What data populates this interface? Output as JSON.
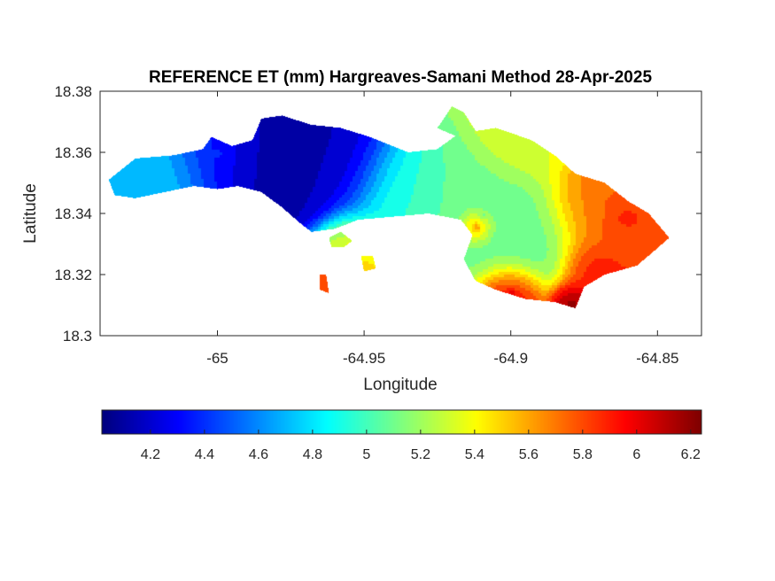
{
  "figure": {
    "title": "REFERENCE ET (mm) Hargreaves-Samani Method  28-Apr-2025",
    "xlabel": "Longitude",
    "ylabel": "Latitude"
  },
  "chart_data": {
    "type": "heatmap",
    "title": "REFERENCE ET (mm) Hargreaves-Samani Method  28-Apr-2025",
    "xlabel": "Longitude",
    "ylabel": "Latitude",
    "xlim": [
      -65.04,
      -64.835
    ],
    "ylim": [
      18.3,
      18.38
    ],
    "x_ticks": [
      -65,
      -64.95,
      -64.9,
      -64.85
    ],
    "x_tick_labels": [
      "-65",
      "-64.95",
      "-64.9",
      "-64.85"
    ],
    "y_ticks": [
      18.3,
      18.32,
      18.34,
      18.36,
      18.38
    ],
    "y_tick_labels": [
      "18.3",
      "18.32",
      "18.34",
      "18.36",
      "18.38"
    ],
    "colormap": "jet",
    "colormap_stops": [
      "#00007f",
      "#0000ff",
      "#007fff",
      "#00ffff",
      "#7fff7f",
      "#ffff00",
      "#ff7f00",
      "#ff0000",
      "#7f0000"
    ],
    "color_range": [
      4.02,
      6.24
    ],
    "colorbar_ticks": [
      4.2,
      4.4,
      4.6,
      4.8,
      5,
      5.2,
      5.4,
      5.6,
      5.8,
      6,
      6.2
    ],
    "colorbar_tick_labels": [
      "4.2",
      "4.4",
      "4.6",
      "4.8",
      "5",
      "5.2",
      "5.4",
      "5.6",
      "5.8",
      "6",
      "6.2"
    ],
    "grid": false,
    "colorbar_position": "bottom",
    "field_hotspots": [
      {
        "lon": -64.985,
        "lat": 18.358,
        "value": 4.05,
        "spread": 0.012
      },
      {
        "lon": -64.96,
        "lat": 18.354,
        "value": 4.15,
        "spread": 0.01
      },
      {
        "lon": -65.0,
        "lat": 18.36,
        "value": 4.4,
        "spread": 0.01
      },
      {
        "lon": -65.02,
        "lat": 18.352,
        "value": 4.75,
        "spread": 0.01
      },
      {
        "lon": -64.94,
        "lat": 18.345,
        "value": 4.95,
        "spread": 0.01
      },
      {
        "lon": -64.91,
        "lat": 18.34,
        "value": 5.1,
        "spread": 0.012
      },
      {
        "lon": -64.895,
        "lat": 18.33,
        "value": 5.05,
        "spread": 0.01
      },
      {
        "lon": -64.912,
        "lat": 18.336,
        "value": 5.8,
        "spread": 0.003
      },
      {
        "lon": -64.87,
        "lat": 18.34,
        "value": 5.7,
        "spread": 0.01
      },
      {
        "lon": -64.862,
        "lat": 18.339,
        "value": 5.95,
        "spread": 0.005
      },
      {
        "lon": -64.872,
        "lat": 18.322,
        "value": 5.95,
        "spread": 0.006
      },
      {
        "lon": -64.85,
        "lat": 18.33,
        "value": 5.85,
        "spread": 0.005
      },
      {
        "lon": -64.9,
        "lat": 18.314,
        "value": 6.1,
        "spread": 0.006
      },
      {
        "lon": -64.88,
        "lat": 18.311,
        "value": 6.2,
        "spread": 0.004
      },
      {
        "lon": -64.895,
        "lat": 18.365,
        "value": 5.35,
        "spread": 0.008
      },
      {
        "lon": -64.955,
        "lat": 18.33,
        "value": 5.4,
        "spread": 0.006
      },
      {
        "lon": -64.95,
        "lat": 18.323,
        "value": 5.5,
        "spread": 0.004
      },
      {
        "lon": -64.963,
        "lat": 18.318,
        "value": 5.8,
        "spread": 0.003
      }
    ],
    "land_regions": [
      {
        "name": "main",
        "outline": [
          [
            -65.037,
            18.351
          ],
          [
            -65.028,
            18.358
          ],
          [
            -65.015,
            18.359
          ],
          [
            -65.005,
            18.361
          ],
          [
            -65.002,
            18.365
          ],
          [
            -64.995,
            18.362
          ],
          [
            -64.988,
            18.364
          ],
          [
            -64.985,
            18.371
          ],
          [
            -64.978,
            18.372
          ],
          [
            -64.968,
            18.369
          ],
          [
            -64.958,
            18.368
          ],
          [
            -64.948,
            18.365
          ],
          [
            -64.935,
            18.36
          ],
          [
            -64.925,
            18.361
          ],
          [
            -64.918,
            18.366
          ],
          [
            -64.905,
            18.368
          ],
          [
            -64.893,
            18.364
          ],
          [
            -64.885,
            18.359
          ],
          [
            -64.878,
            18.353
          ],
          [
            -64.868,
            18.35
          ],
          [
            -64.86,
            18.344
          ],
          [
            -64.853,
            18.34
          ],
          [
            -64.846,
            18.332
          ],
          [
            -64.852,
            18.327
          ],
          [
            -64.857,
            18.323
          ],
          [
            -64.868,
            18.32
          ],
          [
            -64.875,
            18.316
          ],
          [
            -64.878,
            18.309
          ],
          [
            -64.885,
            18.311
          ],
          [
            -64.895,
            18.312
          ],
          [
            -64.905,
            18.315
          ],
          [
            -64.912,
            18.318
          ],
          [
            -64.916,
            18.325
          ],
          [
            -64.913,
            18.333
          ],
          [
            -64.917,
            18.338
          ],
          [
            -64.928,
            18.34
          ],
          [
            -64.94,
            18.339
          ],
          [
            -64.952,
            18.338
          ],
          [
            -64.96,
            18.335
          ],
          [
            -64.968,
            18.334
          ],
          [
            -64.972,
            18.337
          ],
          [
            -64.978,
            18.342
          ],
          [
            -64.985,
            18.347
          ],
          [
            -64.993,
            18.349
          ],
          [
            -65.0,
            18.348
          ],
          [
            -65.008,
            18.349
          ],
          [
            -65.018,
            18.347
          ],
          [
            -65.028,
            18.345
          ],
          [
            -65.035,
            18.346
          ]
        ]
      },
      {
        "name": "northeast-tip",
        "outline": [
          [
            -64.925,
            18.368
          ],
          [
            -64.92,
            18.375
          ],
          [
            -64.916,
            18.373
          ],
          [
            -64.912,
            18.367
          ],
          [
            -64.918,
            18.365
          ]
        ]
      },
      {
        "name": "islet-1",
        "outline": [
          [
            -64.962,
            18.332
          ],
          [
            -64.958,
            18.334
          ],
          [
            -64.954,
            18.331
          ],
          [
            -64.957,
            18.329
          ],
          [
            -64.961,
            18.329
          ]
        ]
      },
      {
        "name": "islet-2",
        "outline": [
          [
            -64.951,
            18.326
          ],
          [
            -64.947,
            18.326
          ],
          [
            -64.946,
            18.322
          ],
          [
            -64.95,
            18.321
          ]
        ]
      },
      {
        "name": "islet-3",
        "outline": [
          [
            -64.965,
            18.32
          ],
          [
            -64.963,
            18.32
          ],
          [
            -64.962,
            18.314
          ],
          [
            -64.965,
            18.315
          ]
        ]
      }
    ]
  }
}
